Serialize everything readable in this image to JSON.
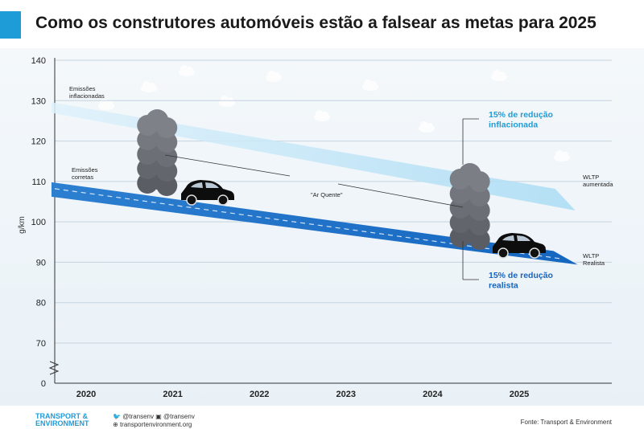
{
  "title": "Como os construtores automóveis estão a falsear as metas para 2025",
  "colors": {
    "accent": "#1e9cd7",
    "inflated_band": "#a9dcf4",
    "real_band": "#1566c0",
    "background_panel": "#e9f1f7"
  },
  "chart_data": {
    "type": "area",
    "ylabel": "g/km",
    "xlabel": "",
    "x_categories": [
      "2020",
      "2021",
      "2022",
      "2023",
      "2024",
      "2025"
    ],
    "y_ticks": [
      "0",
      "70",
      "80",
      "90",
      "100",
      "110",
      "120",
      "130",
      "140"
    ],
    "ylim": [
      70,
      140
    ],
    "axis_break": true,
    "grid": true,
    "series": [
      {
        "name": "WLTP aumentada",
        "x": [
          2019.6,
          2025.6
        ],
        "values": [
          129,
          107
        ]
      },
      {
        "name": "WLTP Realista",
        "x": [
          2019.6,
          2025.6
        ],
        "values": [
          109,
          90
        ]
      }
    ],
    "annotations": {
      "inflated_start": "Emissões inflacionadas",
      "real_start": "Emissões corretas",
      "hot_air": "\"Ar Quente\"",
      "inflated_reduction": "15% de redução inflacionada",
      "real_reduction": "15% de redução realista",
      "end_inflated": "WLTP aumentada",
      "end_real": "WLTP Realista"
    }
  },
  "footer": {
    "logo_line1": "TRANSPORT &",
    "logo_line2": "ENVIRONMENT",
    "twitter": "@transenv",
    "facebook": "@transenv",
    "website": "transportenvironment.org",
    "source": "Fonte: Transport & Environment"
  }
}
